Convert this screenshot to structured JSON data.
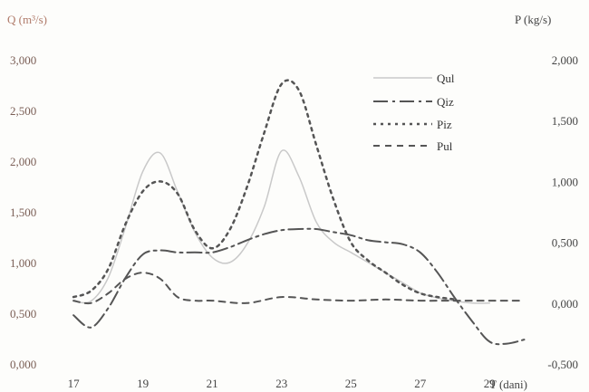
{
  "chart_data": {
    "type": "line",
    "left_axis_label": "Q (m³/s)",
    "right_axis_label": "P (kg/s)",
    "xlabel": "T (dani)",
    "x_ticks": [
      "17",
      "19",
      "21",
      "23",
      "25",
      "27",
      "29"
    ],
    "y_left_ticks": [
      "0,000",
      "0,500",
      "1,000",
      "1,500",
      "2,000",
      "2,500",
      "3,000"
    ],
    "y_right_ticks": [
      "-0,500",
      "0,000",
      "0,500",
      "1,000",
      "1,500",
      "2,000"
    ],
    "xlim": [
      16.5,
      30.3
    ],
    "ylim_left": [
      0,
      3
    ],
    "ylim_right": [
      -0.5,
      2
    ],
    "series": [
      {
        "name": "Qul",
        "axis": "left",
        "color": "#c9c9c9",
        "dash": "solid",
        "x": [
          17,
          17.5,
          18,
          18.5,
          19,
          19.5,
          20,
          20.5,
          21,
          21.5,
          22,
          22.5,
          23,
          23.5,
          24,
          24.5,
          25,
          25.5,
          26,
          26.5,
          27,
          27.5,
          28,
          28.5,
          29
        ],
        "values": [
          0.62,
          0.62,
          0.85,
          1.35,
          1.9,
          2.08,
          1.7,
          1.3,
          1.05,
          1.0,
          1.18,
          1.55,
          2.1,
          1.85,
          1.4,
          1.2,
          1.1,
          1.0,
          0.9,
          0.8,
          0.7,
          0.65,
          0.62,
          0.6,
          0.6
        ]
      },
      {
        "name": "Qiz",
        "axis": "left",
        "color": "#555555",
        "dash": "dashdot",
        "x": [
          17,
          17.5,
          18,
          18.5,
          19,
          19.5,
          20,
          20.5,
          21,
          21.5,
          22,
          22.5,
          23,
          23.5,
          24,
          24.5,
          25,
          25.5,
          26,
          26.5,
          27,
          27.5,
          28,
          28.5,
          29,
          29.5,
          30
        ],
        "values": [
          0.48,
          0.36,
          0.55,
          0.85,
          1.08,
          1.12,
          1.1,
          1.1,
          1.1,
          1.15,
          1.22,
          1.28,
          1.32,
          1.33,
          1.33,
          1.3,
          1.27,
          1.22,
          1.2,
          1.18,
          1.1,
          0.9,
          0.65,
          0.42,
          0.22,
          0.2,
          0.24
        ]
      },
      {
        "name": "Piz",
        "axis": "right",
        "color": "#555555",
        "dash": "dotted",
        "x": [
          17,
          17.5,
          18,
          18.5,
          19,
          19.5,
          20,
          20.5,
          21,
          21.5,
          22,
          22.5,
          23,
          23.5,
          24,
          24.5,
          25,
          25.5,
          26,
          26.5,
          27,
          27.5,
          28
        ],
        "values": [
          0.05,
          0.1,
          0.28,
          0.65,
          0.92,
          1.0,
          0.9,
          0.6,
          0.45,
          0.6,
          0.95,
          1.4,
          1.8,
          1.75,
          1.3,
          0.85,
          0.5,
          0.35,
          0.25,
          0.15,
          0.08,
          0.05,
          0.03
        ]
      },
      {
        "name": "Pul",
        "axis": "right",
        "color": "#555555",
        "dash": "dashed",
        "x": [
          17,
          17.5,
          18,
          18.5,
          19,
          19.5,
          20,
          20.5,
          21,
          22,
          23,
          24,
          25,
          26,
          27,
          28,
          29,
          30
        ],
        "values": [
          0.02,
          0.0,
          0.08,
          0.2,
          0.25,
          0.2,
          0.05,
          0.02,
          0.02,
          0.0,
          0.05,
          0.03,
          0.02,
          0.03,
          0.02,
          0.02,
          0.02,
          0.02
        ]
      }
    ],
    "legend_position": "top-right",
    "grid": false
  }
}
